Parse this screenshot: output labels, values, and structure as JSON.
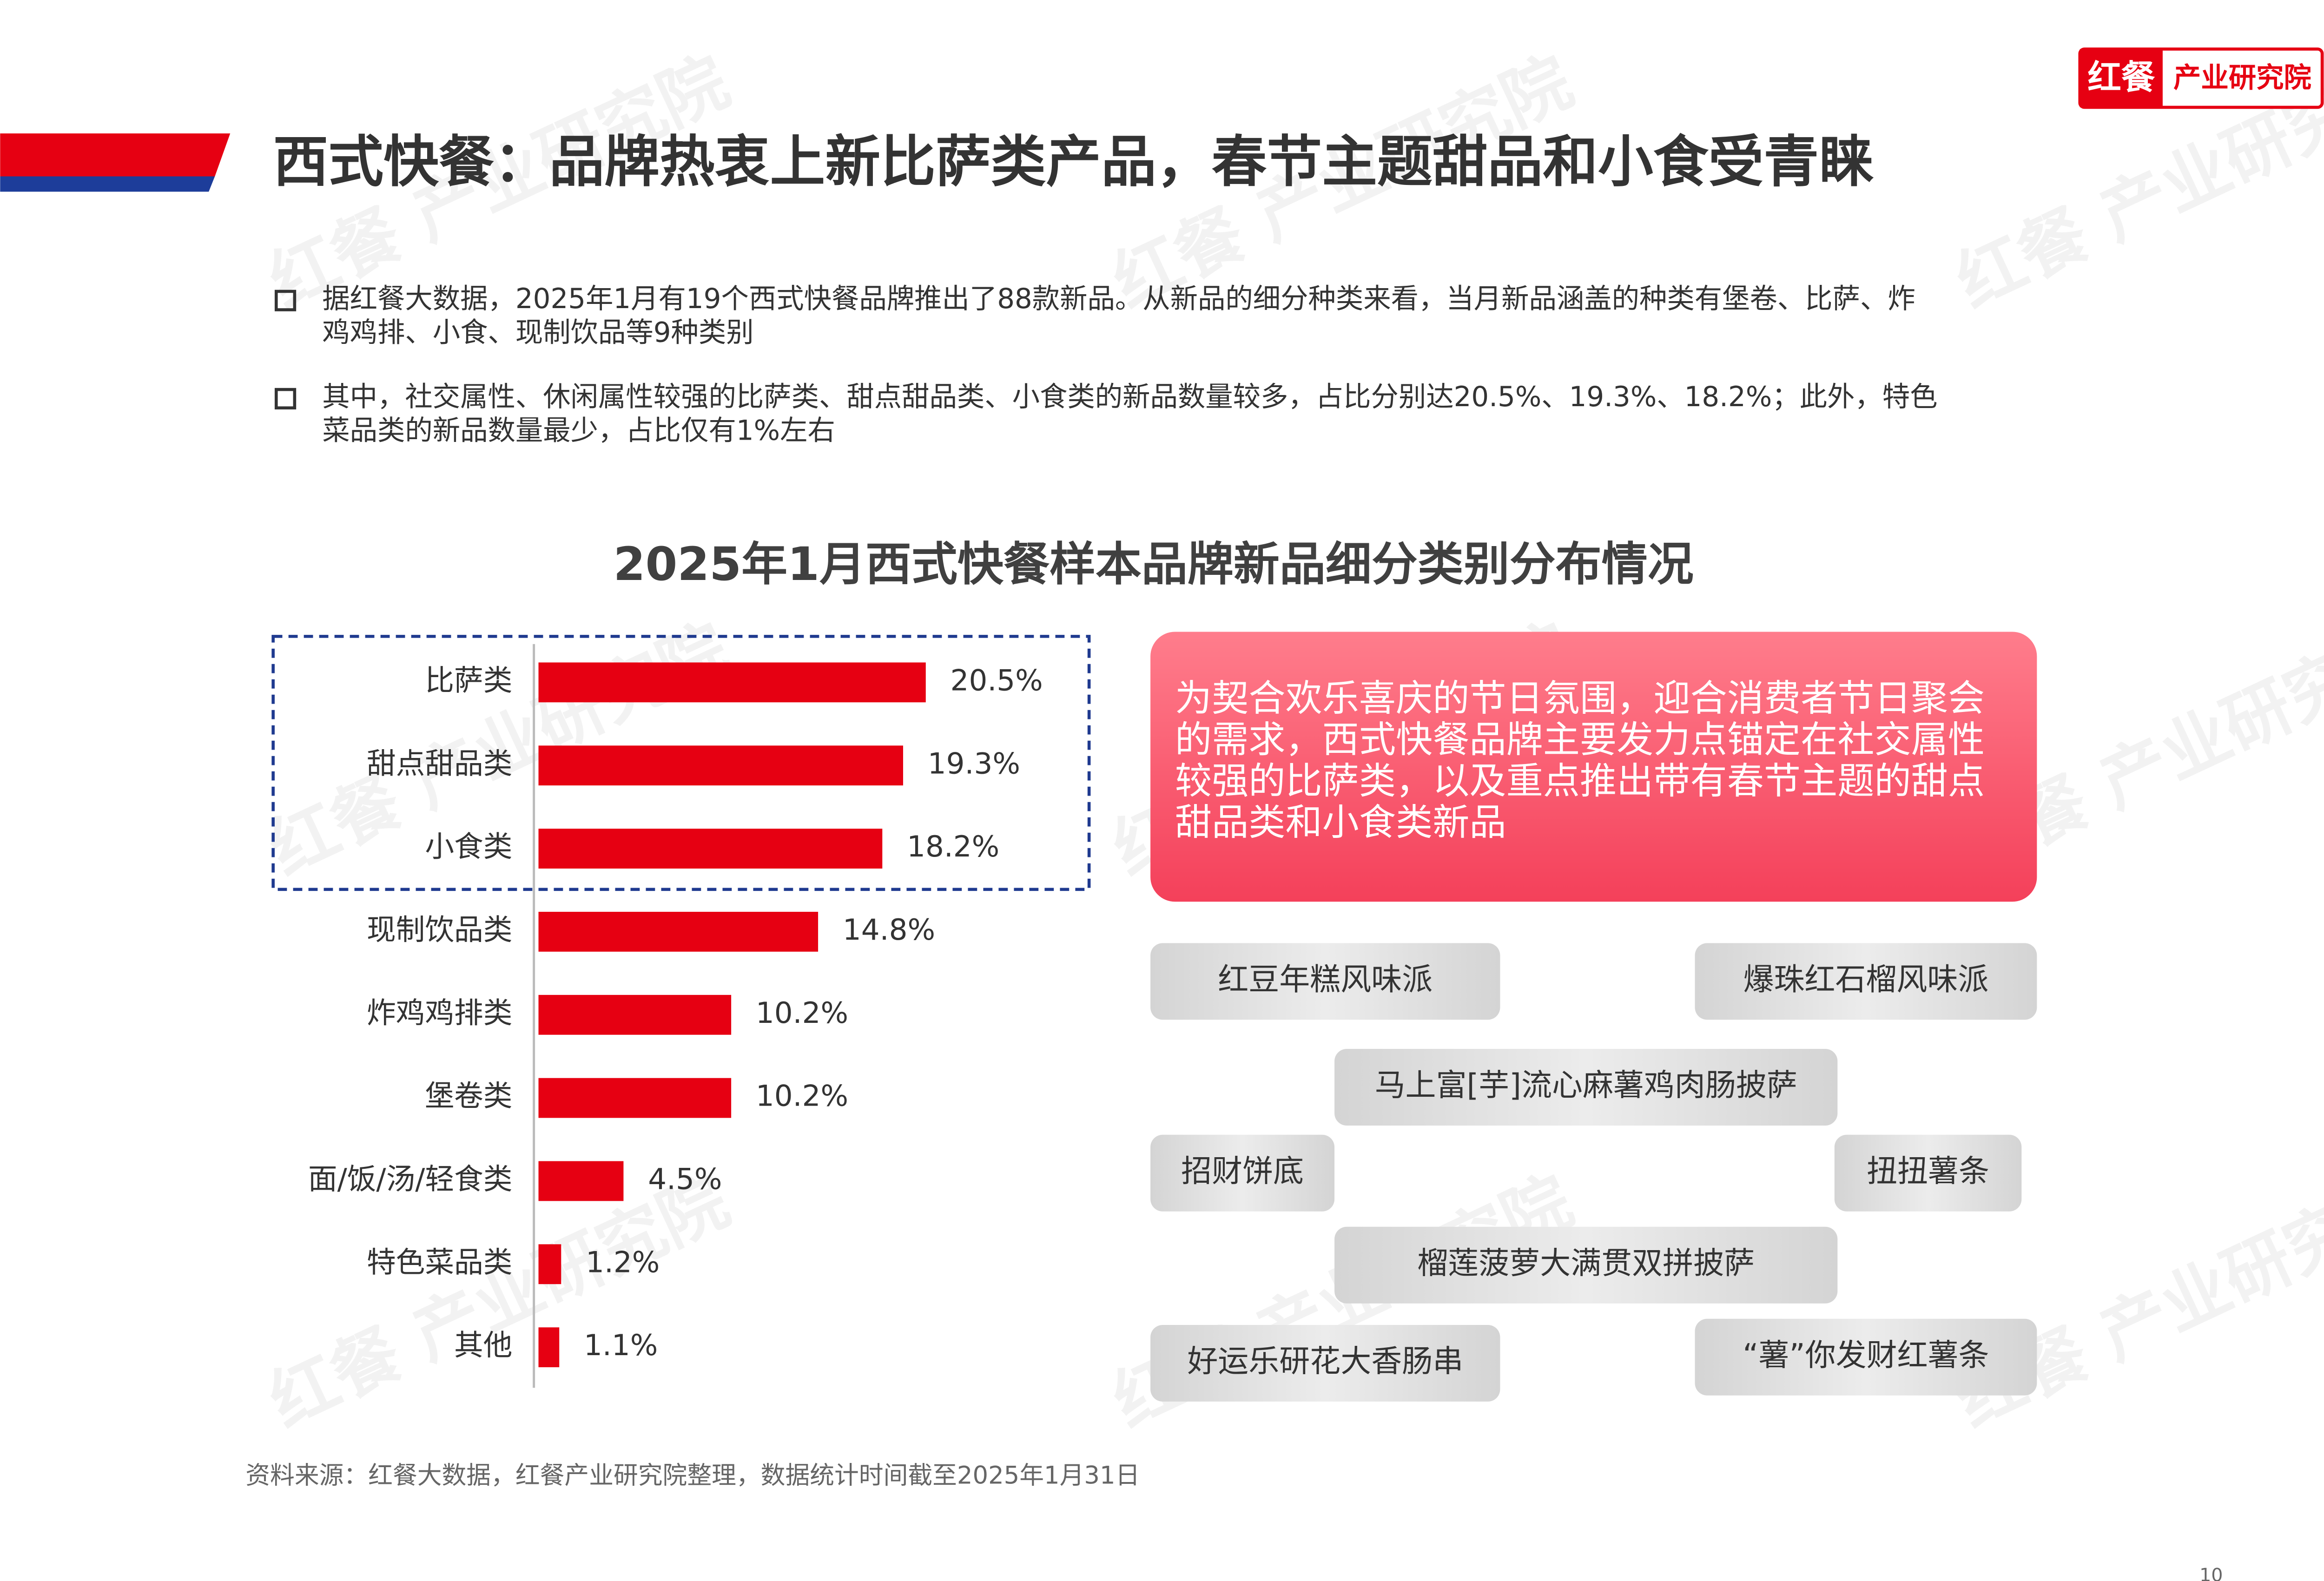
{
  "logo": {
    "left": "红餐",
    "right": "产业研究院"
  },
  "header": {
    "title": "西式快餐：品牌热衷上新比萨类产品，春节主题甜品和小食受青睐"
  },
  "bullets": [
    [
      "据红餐大数据，2025年1月有19个西式快餐品牌推出了88款新品。从新品的细分种类来看，当月新品涵盖的种类有堡卷、比萨、炸",
      "鸡鸡排、小食、现制饮品等9种类别"
    ],
    [
      "其中，社交属性、休闲属性较强的比萨类、甜点甜品类、小食类的新品数量较多，占比分别达20.5%、19.3%、18.2%；此外，特色",
      "菜品类的新品数量最少，占比仅有1%左右"
    ]
  ],
  "chart_data": {
    "type": "bar",
    "orientation": "horizontal",
    "title": "2025年1月西式快餐样本品牌新品细分类别分布情况",
    "categories": [
      "比萨类",
      "甜点甜品类",
      "小食类",
      "现制饮品类",
      "炸鸡鸡排类",
      "堡卷类",
      "面/饭/汤/轻食类",
      "特色菜品类",
      "其他"
    ],
    "values": [
      20.5,
      19.3,
      18.2,
      14.8,
      10.2,
      10.2,
      4.5,
      1.2,
      1.1
    ],
    "value_labels": [
      "20.5%",
      "19.3%",
      "18.2%",
      "14.8%",
      "10.2%",
      "10.2%",
      "4.5%",
      "1.2%",
      "1.1%"
    ],
    "color": "#e60012",
    "xlim": [
      0,
      22
    ]
  },
  "callout": [
    "为契合欢乐喜庆的节日氛围，迎合消费者节日聚会",
    "的需求，西式快餐品牌主要发力点锚定在社交属性",
    "较强的比萨类，以及重点推出带有春节主题的甜点",
    "甜品类和小食类新品"
  ],
  "tags": [
    "红豆年糕风味派",
    "爆珠红石榴风味派",
    "马上富[芋]流心麻薯鸡肉肠披萨",
    "招财饼底",
    "扭扭薯条",
    "榴莲菠萝大满贯双拼披萨",
    "好运乐研花大香肠串",
    "“薯”你发财红薯条"
  ],
  "source": "资料来源：红餐大数据，红餐产业研究院整理，数据统计时间截至2025年1月31日",
  "watermark": "红餐 产业研究院",
  "page_number": "10"
}
